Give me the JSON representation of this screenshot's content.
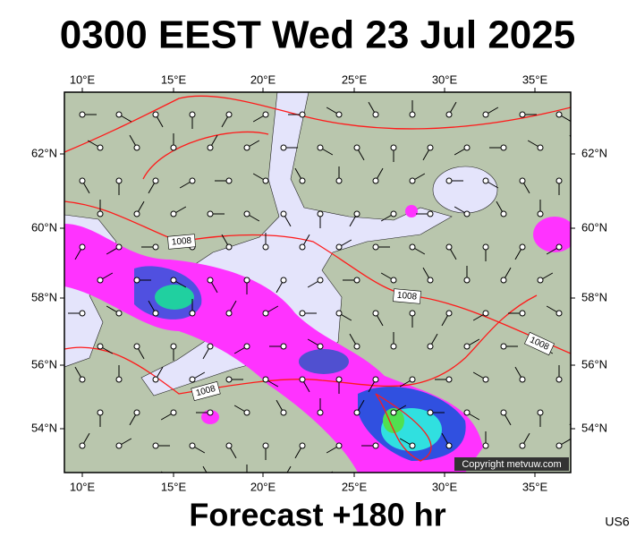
{
  "header": {
    "title": "0300 EEST Wed 23 Jul 2025"
  },
  "map": {
    "lon_labels": [
      "10°E",
      "15°E",
      "20°E",
      "25°E",
      "30°E",
      "35°E"
    ],
    "lat_labels": [
      "62°N",
      "60°N",
      "58°N",
      "56°N",
      "54°N"
    ],
    "isobar_labels": [
      "1008",
      "1008",
      "1008",
      "1008"
    ],
    "copyright": "Copyright metvuw.com"
  },
  "footer": {
    "forecast": "Forecast +180 hr",
    "code": "US6"
  }
}
